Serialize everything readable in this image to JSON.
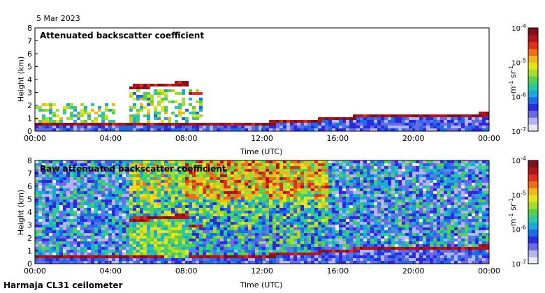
{
  "date": "5 Mar 2023",
  "footer": "Harmaja CL31 ceilometer",
  "colors": {
    "colormap": [
      "#e8e8f8",
      "#b4b4f0",
      "#6a6ae6",
      "#2a2ae0",
      "#1c6ce8",
      "#1ca8d8",
      "#2cc8a0",
      "#5ad04a",
      "#a6dc2c",
      "#e6e21c",
      "#f0b81c",
      "#ee6c1c",
      "#e0301c",
      "#b0141c",
      "#80101c"
    ],
    "background": "#ffffff"
  },
  "chart_data": [
    {
      "type": "heatmap",
      "title": "Attenuated backscatter coefficient",
      "xlabel": "Time (UTC)",
      "ylabel": "Height (km)",
      "x_ticks": [
        "00:00",
        "04:00",
        "08:00",
        "12:00",
        "16:00",
        "20:00",
        "00:00"
      ],
      "y_ticks": [
        "0",
        "1",
        "2",
        "3",
        "4",
        "5",
        "6",
        "7",
        "8"
      ],
      "xlim_hours": [
        0,
        24
      ],
      "ylim_km": [
        0,
        8
      ],
      "colorbar": {
        "label_prefix": "m",
        "label_middle": " sr",
        "label_sup": "-1",
        "ticks": [
          {
            "base": "10",
            "exp": "-4",
            "value": 0.0001
          },
          {
            "base": "10",
            "exp": "-5",
            "value": 1e-05
          },
          {
            "base": "10",
            "exp": "-6",
            "value": 1e-06
          },
          {
            "base": "10",
            "exp": "-7",
            "value": 1e-07
          }
        ],
        "scale": "log"
      },
      "features": {
        "boundary_layer_top_km": [
          [
            0,
            0.45
          ],
          [
            3,
            0.55
          ],
          [
            5,
            0.6
          ],
          [
            8,
            0.5
          ],
          [
            10,
            0.45
          ],
          [
            12,
            0.6
          ],
          [
            16,
            0.95
          ],
          [
            18,
            1.25
          ],
          [
            20,
            1.2
          ],
          [
            22,
            1.25
          ],
          [
            24,
            1.3
          ]
        ],
        "elevated_layer": {
          "start_hour": 5.0,
          "end_hour": 8.1,
          "height_km": 3.4,
          "end_height_km": 3.7
        },
        "secondary_layer": {
          "start_hour": 8.1,
          "end_hour": 8.9,
          "height_km": 2.9
        }
      }
    },
    {
      "type": "heatmap",
      "title": "Raw attenuated backscatter coefficient",
      "xlabel": "Time (UTC)",
      "ylabel": "Height (km)",
      "x_ticks": [
        "00:00",
        "04:00",
        "08:00",
        "12:00",
        "16:00",
        "20:00",
        "00:00"
      ],
      "y_ticks": [
        "0",
        "1",
        "2",
        "3",
        "4",
        "5",
        "6",
        "7",
        "8"
      ],
      "xlim_hours": [
        0,
        24
      ],
      "ylim_km": [
        0,
        8
      ],
      "colorbar": {
        "label_prefix": "m",
        "label_middle": " sr",
        "label_sup": "-1",
        "ticks": [
          {
            "base": "10",
            "exp": "-4",
            "value": 0.0001
          },
          {
            "base": "10",
            "exp": "-5",
            "value": 1e-05
          },
          {
            "base": "10",
            "exp": "-6",
            "value": 1e-06
          },
          {
            "base": "10",
            "exp": "-7",
            "value": 1e-07
          }
        ],
        "scale": "log"
      },
      "features": {
        "boundary_layer_top_km": [
          [
            0,
            0.45
          ],
          [
            3,
            0.55
          ],
          [
            5,
            0.6
          ],
          [
            8,
            0.5
          ],
          [
            10,
            0.45
          ],
          [
            12,
            0.6
          ],
          [
            16,
            0.95
          ],
          [
            18,
            1.25
          ],
          [
            20,
            1.2
          ],
          [
            22,
            1.25
          ],
          [
            24,
            1.3
          ]
        ],
        "elevated_layer": {
          "start_hour": 5.0,
          "end_hour": 8.1,
          "height_km": 3.4,
          "end_height_km": 3.7
        },
        "secondary_layer": {
          "start_hour": 8.1,
          "end_hour": 8.9,
          "height_km": 2.9
        }
      }
    }
  ]
}
